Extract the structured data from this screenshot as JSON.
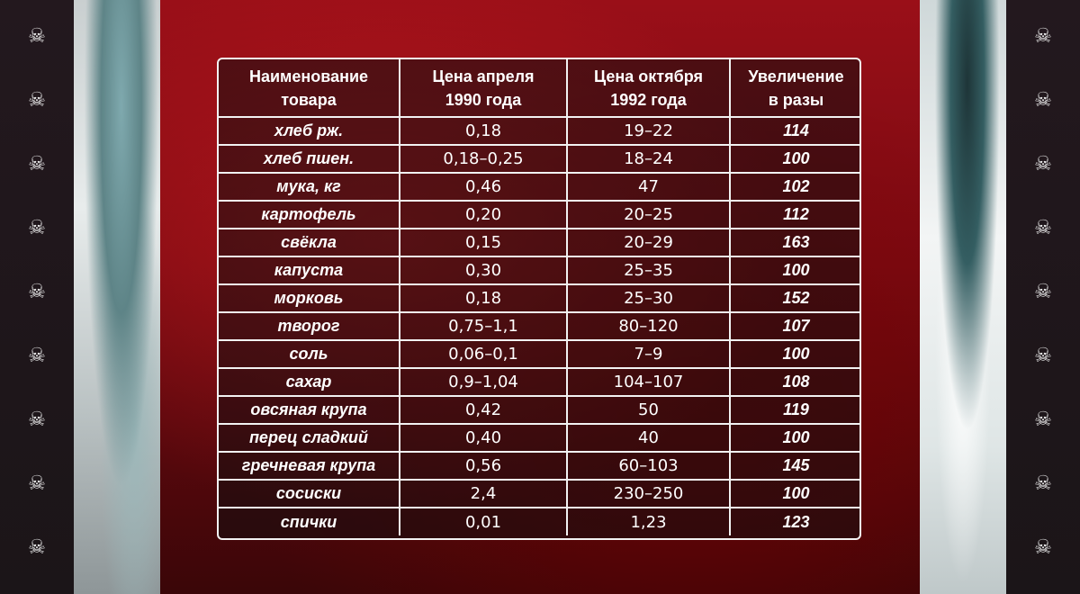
{
  "colors": {
    "accent": "#9a0f18",
    "table_border": "#f2f2f2",
    "text": "#ffffff"
  },
  "decor": {
    "icon": "skull-crossbones-icon"
  },
  "table": {
    "headers": {
      "name_line1": "Наименование",
      "name_line2": "товара",
      "april_line1": "Цена апреля",
      "april_line2": "1990 года",
      "october_line1": "Цена октября",
      "october_line2": "1992 года",
      "increase_line1": "Увеличение",
      "increase_line2": "в разы"
    },
    "rows": [
      {
        "name": "хлеб рж.",
        "april": "0,18",
        "october": "19–22",
        "increase": "114"
      },
      {
        "name": "хлеб пшен.",
        "april": "0,18–0,25",
        "october": "18–24",
        "increase": "100"
      },
      {
        "name": "мука, кг",
        "april": "0,46",
        "october": "47",
        "increase": "102"
      },
      {
        "name": "картофель",
        "april": "0,20",
        "october": "20–25",
        "increase": "112"
      },
      {
        "name": "свёкла",
        "april": "0,15",
        "october": "20–29",
        "increase": "163"
      },
      {
        "name": "капуста",
        "april": "0,30",
        "october": "25–35",
        "increase": "100"
      },
      {
        "name": "морковь",
        "april": "0,18",
        "october": "25–30",
        "increase": "152"
      },
      {
        "name": "творог",
        "april": "0,75–1,1",
        "october": "80–120",
        "increase": "107"
      },
      {
        "name": "соль",
        "april": "0,06–0,1",
        "october": "7–9",
        "increase": "100"
      },
      {
        "name": "сахар",
        "april": "0,9–1,04",
        "october": "104–107",
        "increase": "108"
      },
      {
        "name": "овсяная крупа",
        "april": "0,42",
        "october": "50",
        "increase": "119"
      },
      {
        "name": "перец сладкий",
        "april": "0,40",
        "october": "40",
        "increase": "100"
      },
      {
        "name": "гречневая крупа",
        "april": "0,56",
        "october": "60–103",
        "increase": "145"
      },
      {
        "name": "сосиски",
        "april": "2,4",
        "october": "230–250",
        "increase": "100"
      },
      {
        "name": "спички",
        "april": "0,01",
        "october": "1,23",
        "increase": "123"
      }
    ]
  }
}
